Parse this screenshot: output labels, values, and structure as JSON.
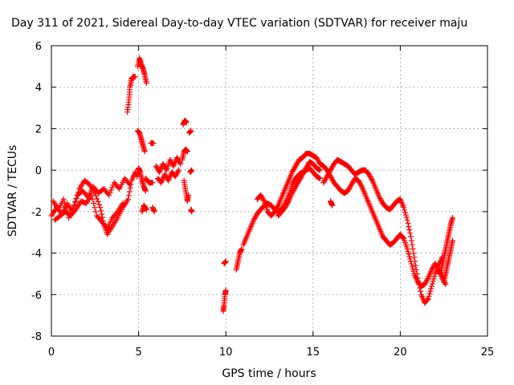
{
  "chart_data": {
    "type": "scatter",
    "title": "Day 311 of 2021, Sidereal Day-to-day VTEC variation (SDTVAR) for receiver maju",
    "xlabel": "GPS time / hours",
    "ylabel": "SDTVAR / TECUs",
    "xlim": [
      0,
      25
    ],
    "ylim": [
      -8,
      6
    ],
    "xticks": [
      0,
      5,
      10,
      15,
      20,
      25
    ],
    "yticks": [
      -8,
      -6,
      -4,
      -2,
      0,
      2,
      4,
      6
    ],
    "xtick_labels": [
      "0",
      "5",
      "10",
      "15",
      "20",
      "25"
    ],
    "ytick_labels": [
      "-8",
      "-6",
      "-4",
      "-2",
      "0",
      "2",
      "4",
      "6"
    ],
    "grid": true,
    "marker": "+",
    "color": "#ff0000",
    "series": [
      {
        "name": "SDTVAR",
        "tracks": [
          [
            [
              0.0,
              -2.2
            ],
            [
              0.3,
              -1.8
            ],
            [
              0.6,
              -2.1
            ],
            [
              0.9,
              -1.6
            ],
            [
              1.2,
              -2.0
            ],
            [
              1.5,
              -1.2
            ],
            [
              1.8,
              -1.0
            ],
            [
              2.1,
              -1.3
            ],
            [
              2.4,
              -0.8
            ],
            [
              2.7,
              -1.1
            ],
            [
              3.0,
              -0.9
            ],
            [
              3.3,
              -1.2
            ],
            [
              3.6,
              -0.6
            ],
            [
              3.9,
              -0.9
            ],
            [
              4.2,
              -0.4
            ],
            [
              4.5,
              -0.7
            ]
          ],
          [
            [
              0.1,
              -1.5
            ],
            [
              0.4,
              -1.9
            ],
            [
              0.7,
              -1.4
            ],
            [
              1.0,
              -2.3
            ],
            [
              1.3,
              -1.7
            ],
            [
              1.6,
              -0.9
            ],
            [
              1.9,
              -0.5
            ],
            [
              2.2,
              -0.7
            ],
            [
              2.5,
              -1.1
            ],
            [
              2.8,
              -1.8
            ],
            [
              3.0,
              -2.6
            ],
            [
              3.2,
              -3.1
            ],
            [
              3.5,
              -2.7
            ],
            [
              3.8,
              -2.3
            ],
            [
              4.1,
              -1.8
            ],
            [
              4.4,
              -1.4
            ],
            [
              4.6,
              -0.5
            ],
            [
              4.8,
              -0.1
            ]
          ],
          [
            [
              0.2,
              -2.4
            ],
            [
              0.5,
              -2.2
            ],
            [
              0.8,
              -2.0
            ],
            [
              1.1,
              -2.2
            ],
            [
              1.4,
              -1.9
            ],
            [
              1.7,
              -1.5
            ],
            [
              2.0,
              -1.6
            ],
            [
              2.3,
              -1.2
            ],
            [
              2.6,
              -2.2
            ],
            [
              2.9,
              -2.5
            ],
            [
              3.2,
              -2.8
            ],
            [
              3.5,
              -2.3
            ],
            [
              3.8,
              -2.0
            ],
            [
              4.1,
              -1.6
            ]
          ],
          [
            [
              4.35,
              2.8
            ],
            [
              4.45,
              3.4
            ],
            [
              4.5,
              4.0
            ],
            [
              4.6,
              4.4
            ],
            [
              4.7,
              4.5
            ],
            [
              4.8,
              4.5
            ]
          ],
          [
            [
              4.95,
              5.0
            ],
            [
              5.05,
              5.4
            ],
            [
              5.15,
              5.1
            ],
            [
              5.25,
              4.9
            ],
            [
              5.35,
              4.6
            ],
            [
              5.45,
              4.2
            ]
          ],
          [
            [
              4.9,
              -0.3
            ],
            [
              5.0,
              0.1
            ],
            [
              5.1,
              -0.1
            ],
            [
              5.2,
              -0.5
            ],
            [
              5.3,
              -0.8
            ],
            [
              5.4,
              -1.0
            ]
          ],
          [
            [
              4.95,
              1.9
            ],
            [
              5.05,
              1.8
            ],
            [
              5.15,
              1.5
            ],
            [
              5.25,
              1.2
            ],
            [
              5.35,
              0.9
            ]
          ],
          [
            [
              5.2,
              -2.0
            ],
            [
              5.3,
              -1.7
            ],
            [
              5.45,
              -1.9
            ]
          ],
          [
            [
              5.4,
              -0.4
            ],
            [
              5.6,
              -0.6
            ],
            [
              5.8,
              -0.6
            ]
          ],
          [
            [
              5.7,
              1.3
            ],
            [
              5.85,
              1.3
            ]
          ],
          [
            [
              5.8,
              -1.8
            ],
            [
              5.9,
              -2.0
            ]
          ],
          [
            [
              6.0,
              0.2
            ],
            [
              6.2,
              -0.1
            ],
            [
              6.4,
              0.3
            ],
            [
              6.6,
              0.0
            ],
            [
              6.8,
              0.5
            ],
            [
              7.0,
              0.2
            ],
            [
              7.2,
              0.6
            ],
            [
              7.4,
              0.3
            ]
          ],
          [
            [
              6.1,
              -0.4
            ],
            [
              6.3,
              -0.6
            ],
            [
              6.5,
              -0.2
            ],
            [
              6.7,
              -0.5
            ],
            [
              6.9,
              -0.1
            ],
            [
              7.1,
              -0.3
            ],
            [
              7.3,
              0.0
            ]
          ],
          [
            [
              7.5,
              0.5
            ],
            [
              7.6,
              0.9
            ],
            [
              7.7,
              1.0
            ],
            [
              7.8,
              0.9
            ]
          ],
          [
            [
              7.55,
              2.2
            ],
            [
              7.65,
              2.4
            ],
            [
              7.75,
              2.3
            ]
          ],
          [
            [
              7.6,
              -0.5
            ],
            [
              7.7,
              -1.0
            ],
            [
              7.8,
              -1.5
            ],
            [
              7.85,
              -1.2
            ]
          ],
          [
            [
              7.9,
              1.8
            ],
            [
              8.0,
              1.9
            ]
          ],
          [
            [
              7.95,
              -0.1
            ],
            [
              8.05,
              0.0
            ]
          ],
          [
            [
              8.0,
              -1.9
            ],
            [
              8.05,
              -2.0
            ]
          ],
          [
            [
              9.85,
              -6.8
            ],
            [
              9.9,
              -6.5
            ],
            [
              9.95,
              -6.0
            ],
            [
              10.0,
              -5.8
            ]
          ],
          [
            [
              9.9,
              -4.5
            ],
            [
              10.0,
              -4.4
            ]
          ],
          [
            [
              10.6,
              -4.8
            ],
            [
              10.7,
              -4.4
            ],
            [
              10.8,
              -4.0
            ],
            [
              10.9,
              -3.8
            ]
          ],
          [
            [
              11.0,
              -3.6
            ],
            [
              11.2,
              -3.2
            ],
            [
              11.4,
              -2.8
            ],
            [
              11.6,
              -2.4
            ],
            [
              11.8,
              -2.1
            ],
            [
              12.0,
              -1.9
            ],
            [
              12.2,
              -1.7
            ],
            [
              12.4,
              -1.6
            ],
            [
              12.6,
              -1.7
            ],
            [
              12.8,
              -1.9
            ],
            [
              13.0,
              -2.0
            ],
            [
              13.2,
              -1.9
            ],
            [
              13.4,
              -1.6
            ],
            [
              13.6,
              -1.2
            ],
            [
              13.8,
              -0.7
            ],
            [
              14.0,
              -0.4
            ],
            [
              14.2,
              -0.2
            ],
            [
              14.4,
              -0.1
            ],
            [
              14.6,
              0.0
            ],
            [
              14.8,
              0.1
            ],
            [
              15.0,
              -0.1
            ],
            [
              15.2,
              -0.3
            ],
            [
              15.4,
              -0.4
            ]
          ],
          [
            [
              11.8,
              -1.4
            ],
            [
              12.0,
              -1.2
            ],
            [
              12.2,
              -1.5
            ],
            [
              12.4,
              -2.0
            ],
            [
              12.6,
              -2.2
            ],
            [
              12.8,
              -2.0
            ],
            [
              13.0,
              -1.7
            ],
            [
              13.2,
              -1.3
            ],
            [
              13.4,
              -0.9
            ],
            [
              13.6,
              -0.5
            ],
            [
              13.8,
              -0.1
            ],
            [
              14.0,
              0.2
            ],
            [
              14.2,
              0.5
            ],
            [
              14.4,
              0.6
            ],
            [
              14.6,
              0.8
            ],
            [
              14.8,
              0.8
            ],
            [
              15.0,
              0.7
            ],
            [
              15.2,
              0.6
            ],
            [
              15.4,
              0.3
            ],
            [
              15.6,
              0.2
            ]
          ],
          [
            [
              13.0,
              -2.2
            ],
            [
              13.2,
              -2.0
            ],
            [
              13.4,
              -1.8
            ],
            [
              13.6,
              -1.5
            ],
            [
              13.8,
              -1.1
            ],
            [
              14.0,
              -0.8
            ],
            [
              14.2,
              -0.5
            ],
            [
              14.4,
              -0.2
            ],
            [
              14.6,
              0.1
            ],
            [
              14.8,
              0.4
            ],
            [
              15.0,
              0.3
            ],
            [
              15.2,
              0.1
            ],
            [
              15.4,
              0.0
            ]
          ],
          [
            [
              15.6,
              -0.6
            ],
            [
              15.8,
              -0.3
            ],
            [
              16.0,
              0.0
            ],
            [
              16.2,
              0.3
            ],
            [
              16.4,
              0.5
            ],
            [
              16.6,
              0.4
            ],
            [
              16.8,
              0.3
            ],
            [
              17.0,
              0.2
            ],
            [
              17.2,
              0.0
            ],
            [
              17.4,
              -0.2
            ],
            [
              17.6,
              -0.1
            ],
            [
              17.8,
              0.0
            ],
            [
              18.0,
              0.0
            ],
            [
              18.2,
              -0.2
            ],
            [
              18.4,
              -0.5
            ],
            [
              18.6,
              -0.9
            ],
            [
              18.8,
              -1.3
            ],
            [
              19.0,
              -1.6
            ],
            [
              19.2,
              -1.8
            ],
            [
              19.4,
              -1.9
            ],
            [
              19.6,
              -1.7
            ],
            [
              19.8,
              -1.5
            ],
            [
              20.0,
              -1.4
            ],
            [
              20.2,
              -1.8
            ],
            [
              20.4,
              -2.4
            ],
            [
              20.6,
              -3.2
            ],
            [
              20.8,
              -4.2
            ],
            [
              21.0,
              -5.2
            ],
            [
              21.2,
              -6.0
            ],
            [
              21.4,
              -6.4
            ],
            [
              21.6,
              -6.2
            ],
            [
              21.8,
              -5.6
            ],
            [
              22.0,
              -5.0
            ],
            [
              22.2,
              -4.6
            ],
            [
              22.4,
              -4.2
            ]
          ],
          [
            [
              15.6,
              0.2
            ],
            [
              15.8,
              0.0
            ],
            [
              16.0,
              -0.3
            ],
            [
              16.2,
              -0.6
            ],
            [
              16.4,
              -0.8
            ],
            [
              16.6,
              -1.0
            ],
            [
              16.8,
              -1.1
            ],
            [
              17.0,
              -1.0
            ],
            [
              17.2,
              -0.7
            ],
            [
              17.4,
              -0.4
            ],
            [
              17.6,
              -0.5
            ],
            [
              17.8,
              -0.8
            ],
            [
              18.0,
              -1.2
            ],
            [
              18.2,
              -1.6
            ],
            [
              18.4,
              -2.0
            ],
            [
              18.6,
              -2.4
            ],
            [
              18.8,
              -2.8
            ],
            [
              19.0,
              -3.2
            ],
            [
              19.2,
              -3.4
            ],
            [
              19.4,
              -3.6
            ],
            [
              19.6,
              -3.5
            ],
            [
              19.8,
              -3.3
            ],
            [
              20.0,
              -3.1
            ],
            [
              20.2,
              -3.3
            ],
            [
              20.4,
              -3.8
            ],
            [
              20.6,
              -4.4
            ],
            [
              20.8,
              -5.0
            ],
            [
              21.0,
              -5.4
            ],
            [
              21.2,
              -5.6
            ],
            [
              21.4,
              -5.5
            ],
            [
              21.6,
              -5.2
            ],
            [
              21.8,
              -4.8
            ],
            [
              22.0,
              -4.5
            ],
            [
              22.2,
              -4.8
            ],
            [
              22.4,
              -5.2
            ],
            [
              22.6,
              -5.5
            ]
          ],
          [
            [
              16.0,
              -1.5
            ],
            [
              16.1,
              -1.7
            ]
          ],
          [
            [
              22.3,
              -5.0
            ],
            [
              22.4,
              -4.6
            ],
            [
              22.5,
              -4.2
            ],
            [
              22.6,
              -3.8
            ],
            [
              22.7,
              -3.4
            ],
            [
              22.8,
              -3.0
            ],
            [
              22.9,
              -2.6
            ],
            [
              23.0,
              -2.3
            ]
          ],
          [
            [
              22.5,
              -5.4
            ],
            [
              22.6,
              -5.0
            ],
            [
              22.7,
              -4.6
            ],
            [
              22.8,
              -4.2
            ],
            [
              22.9,
              -3.8
            ],
            [
              23.0,
              -3.4
            ]
          ]
        ]
      }
    ]
  }
}
